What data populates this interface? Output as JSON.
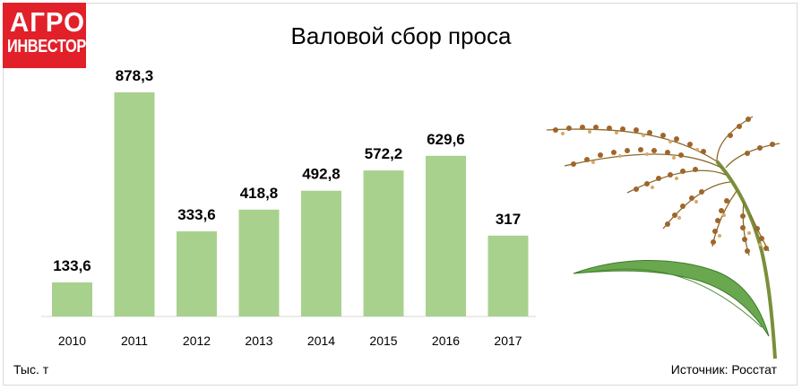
{
  "logo": {
    "line1": "АГРО",
    "line2": "ИНВЕСТОР"
  },
  "units_label": "Тыс. т",
  "source_label": "Источник: Росстат",
  "colors": {
    "bar": "#a9d18e",
    "logo_bg": "#e2202a",
    "axis": "#d9d9d9"
  },
  "chart_data": {
    "type": "bar",
    "title": "Валовой сбор проса",
    "categories": [
      "2010",
      "2011",
      "2012",
      "2013",
      "2014",
      "2015",
      "2016",
      "2017"
    ],
    "values": [
      133.6,
      878.3,
      333.6,
      418.8,
      492.8,
      572.2,
      629.6,
      317
    ],
    "value_labels": [
      "133,6",
      "878,3",
      "333,6",
      "418,8",
      "492,8",
      "572,2",
      "629,6",
      "317"
    ],
    "ylim": [
      0,
      878.3
    ],
    "grid": false,
    "legend": "none"
  }
}
